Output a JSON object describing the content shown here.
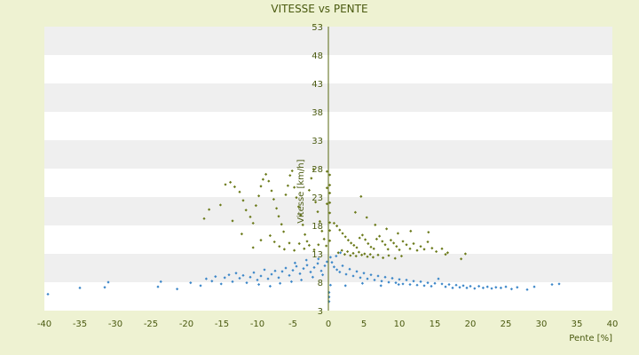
{
  "chart_data": {
    "type": "scatter",
    "title": "VITESSE vs PENTE",
    "xlabel": "Pente [%]",
    "ylabel": "Vitesse [km/h]",
    "xlim": [
      -40,
      40
    ],
    "ylim": [
      3,
      53
    ],
    "x_ticks": [
      -40,
      -35,
      -30,
      -25,
      -20,
      -15,
      -10,
      -5,
      0,
      5,
      10,
      15,
      20,
      25,
      30,
      35,
      40
    ],
    "y_ticks": [
      3,
      8,
      13,
      18,
      23,
      28,
      33,
      38,
      43,
      48,
      53
    ],
    "grid": "alternating horizontal bands",
    "colors": {
      "background": "#eef2d2",
      "band_light": "#ffffff",
      "band_dark": "#efefef",
      "axis": "#5a6a10",
      "text": "#4a5a10",
      "series_high": "#6b7a1a",
      "series_low": "#3b86c8"
    },
    "series": [
      {
        "color": "#6b7a1a",
        "marker": "diamond",
        "points": [
          [
            -14.5,
            25.2
          ],
          [
            -13.8,
            25.6
          ],
          [
            -13.2,
            24.8
          ],
          [
            -12.5,
            23.9
          ],
          [
            -12.0,
            22.4
          ],
          [
            -11.6,
            20.7
          ],
          [
            -11.0,
            19.5
          ],
          [
            -10.6,
            18.4
          ],
          [
            -10.2,
            21.5
          ],
          [
            -9.8,
            23.2
          ],
          [
            -9.5,
            24.9
          ],
          [
            -9.2,
            26.1
          ],
          [
            -8.8,
            27.0
          ],
          [
            -8.4,
            25.8
          ],
          [
            -8.0,
            24.1
          ],
          [
            -7.7,
            22.6
          ],
          [
            -7.3,
            21.0
          ],
          [
            -7.0,
            19.6
          ],
          [
            -6.6,
            18.2
          ],
          [
            -6.3,
            16.9
          ],
          [
            -6.0,
            23.4
          ],
          [
            -5.7,
            25.0
          ],
          [
            -5.4,
            26.8
          ],
          [
            -5.1,
            27.6
          ],
          [
            -4.8,
            24.7
          ],
          [
            -4.5,
            22.9
          ],
          [
            -4.2,
            21.3
          ],
          [
            -3.9,
            19.8
          ],
          [
            -3.6,
            18.1
          ],
          [
            -3.3,
            16.4
          ],
          [
            -3.0,
            15.2
          ],
          [
            -2.7,
            24.2
          ],
          [
            -2.4,
            26.3
          ],
          [
            -2.1,
            27.9
          ],
          [
            -1.8,
            22.1
          ],
          [
            -1.5,
            20.4
          ],
          [
            -1.2,
            18.7
          ],
          [
            -0.9,
            17.0
          ],
          [
            -0.6,
            15.6
          ],
          [
            -0.3,
            14.4
          ],
          [
            -8.2,
            16.2
          ],
          [
            -7.6,
            15.1
          ],
          [
            -6.9,
            14.3
          ],
          [
            -6.2,
            13.8
          ],
          [
            -5.5,
            14.9
          ],
          [
            -4.8,
            13.6
          ],
          [
            -4.1,
            14.8
          ],
          [
            -3.4,
            13.9
          ],
          [
            -2.7,
            14.5
          ],
          [
            -2.0,
            13.7
          ],
          [
            -1.4,
            14.6
          ],
          [
            -9.5,
            15.4
          ],
          [
            -10.6,
            14.1
          ],
          [
            -12.2,
            16.5
          ],
          [
            -13.5,
            18.8
          ],
          [
            -15.2,
            21.6
          ],
          [
            -16.8,
            20.8
          ],
          [
            -17.5,
            19.2
          ],
          [
            0.8,
            18.4
          ],
          [
            1.2,
            17.9
          ],
          [
            1.6,
            17.2
          ],
          [
            2.0,
            16.6
          ],
          [
            2.4,
            16.0
          ],
          [
            2.8,
            15.4
          ],
          [
            3.2,
            14.9
          ],
          [
            3.6,
            14.5
          ],
          [
            4.0,
            14.1
          ],
          [
            4.4,
            15.8
          ],
          [
            4.8,
            16.3
          ],
          [
            5.2,
            15.5
          ],
          [
            5.6,
            14.8
          ],
          [
            6.0,
            14.2
          ],
          [
            6.4,
            13.9
          ],
          [
            6.8,
            15.6
          ],
          [
            7.2,
            16.1
          ],
          [
            7.6,
            15.2
          ],
          [
            8.0,
            14.6
          ],
          [
            8.4,
            13.8
          ],
          [
            8.8,
            15.4
          ],
          [
            9.2,
            14.9
          ],
          [
            9.6,
            14.3
          ],
          [
            10.0,
            13.7
          ],
          [
            10.5,
            15.2
          ],
          [
            11.0,
            14.6
          ],
          [
            11.5,
            13.9
          ],
          [
            12.0,
            14.8
          ],
          [
            12.5,
            13.6
          ],
          [
            13.0,
            14.3
          ],
          [
            13.5,
            13.8
          ],
          [
            14.0,
            15.1
          ],
          [
            14.6,
            14.0
          ],
          [
            15.2,
            13.4
          ],
          [
            16.0,
            13.9
          ],
          [
            16.8,
            13.2
          ],
          [
            1.4,
            13.2
          ],
          [
            1.9,
            13.6
          ],
          [
            2.3,
            12.9
          ],
          [
            2.7,
            13.4
          ],
          [
            3.1,
            12.7
          ],
          [
            3.5,
            13.1
          ],
          [
            3.9,
            12.6
          ],
          [
            4.3,
            13.3
          ],
          [
            4.7,
            12.8
          ],
          [
            5.1,
            13.0
          ],
          [
            5.5,
            12.5
          ],
          [
            5.9,
            12.9
          ],
          [
            6.3,
            12.4
          ],
          [
            7.0,
            12.8
          ],
          [
            7.7,
            12.3
          ],
          [
            8.5,
            12.7
          ],
          [
            9.4,
            12.2
          ],
          [
            10.3,
            12.6
          ],
          [
            3.8,
            20.3
          ],
          [
            4.6,
            23.1
          ],
          [
            5.4,
            19.4
          ],
          [
            6.6,
            18.1
          ],
          [
            8.2,
            17.4
          ],
          [
            9.8,
            16.6
          ],
          [
            11.6,
            17.0
          ],
          [
            14.1,
            16.8
          ],
          [
            16.5,
            12.9
          ],
          [
            18.7,
            12.1
          ],
          [
            19.3,
            13.0
          ],
          [
            0.2,
            26.9
          ],
          [
            0.2,
            25.1
          ],
          [
            0.2,
            23.7
          ],
          [
            0.2,
            22.0
          ],
          [
            0.2,
            20.2
          ],
          [
            0.2,
            18.5
          ],
          [
            0.2,
            17.1
          ],
          [
            0.2,
            15.3
          ],
          [
            -0.2,
            27.5
          ],
          [
            -0.2,
            24.6
          ],
          [
            -0.2,
            21.8
          ]
        ]
      },
      {
        "color": "#3b86c8",
        "marker": "diamond",
        "points": [
          [
            -39.5,
            5.9
          ],
          [
            -35.0,
            7.0
          ],
          [
            -31.5,
            7.1
          ],
          [
            -31.0,
            8.0
          ],
          [
            -24.0,
            7.2
          ],
          [
            -23.6,
            8.1
          ],
          [
            -21.3,
            6.8
          ],
          [
            -19.4,
            7.9
          ],
          [
            -18.0,
            7.4
          ],
          [
            -17.2,
            8.6
          ],
          [
            -16.4,
            8.2
          ],
          [
            -15.9,
            9.0
          ],
          [
            -15.1,
            7.7
          ],
          [
            -14.6,
            8.8
          ],
          [
            -14.0,
            9.3
          ],
          [
            -13.5,
            8.1
          ],
          [
            -13.0,
            9.6
          ],
          [
            -12.5,
            8.7
          ],
          [
            -12.0,
            9.2
          ],
          [
            -11.5,
            7.9
          ],
          [
            -11.0,
            8.9
          ],
          [
            -10.5,
            9.7
          ],
          [
            -10.0,
            8.4
          ],
          [
            -9.5,
            9.1
          ],
          [
            -9.0,
            10.2
          ],
          [
            -8.5,
            8.6
          ],
          [
            -8.0,
            9.4
          ],
          [
            -7.5,
            10.0
          ],
          [
            -7.0,
            8.8
          ],
          [
            -6.5,
            9.9
          ],
          [
            -6.0,
            10.5
          ],
          [
            -5.5,
            9.2
          ],
          [
            -5.0,
            10.1
          ],
          [
            -4.5,
            10.8
          ],
          [
            -4.0,
            9.5
          ],
          [
            -3.5,
            10.4
          ],
          [
            -3.0,
            11.0
          ],
          [
            -2.5,
            9.8
          ],
          [
            -2.0,
            10.6
          ],
          [
            -1.5,
            11.3
          ],
          [
            -1.0,
            10.0
          ],
          [
            -0.5,
            10.9
          ],
          [
            -0.2,
            11.6
          ],
          [
            -9.8,
            7.6
          ],
          [
            -8.2,
            7.3
          ],
          [
            -6.8,
            7.8
          ],
          [
            -5.2,
            8.1
          ],
          [
            -3.8,
            8.4
          ],
          [
            -2.2,
            8.9
          ],
          [
            -0.8,
            9.3
          ],
          [
            -1.4,
            12.1
          ],
          [
            -3.1,
            11.9
          ],
          [
            -4.7,
            11.4
          ],
          [
            0.3,
            12.4
          ],
          [
            0.5,
            11.5
          ],
          [
            0.8,
            10.7
          ],
          [
            1.2,
            10.2
          ],
          [
            1.6,
            9.8
          ],
          [
            2.0,
            10.9
          ],
          [
            2.5,
            9.4
          ],
          [
            3.0,
            10.3
          ],
          [
            3.5,
            9.1
          ],
          [
            4.0,
            9.9
          ],
          [
            4.5,
            8.8
          ],
          [
            5.0,
            9.6
          ],
          [
            5.5,
            8.6
          ],
          [
            6.0,
            9.3
          ],
          [
            6.5,
            8.4
          ],
          [
            7.0,
            9.1
          ],
          [
            7.5,
            8.2
          ],
          [
            8.0,
            8.9
          ],
          [
            8.5,
            8.0
          ],
          [
            9.0,
            8.7
          ],
          [
            9.5,
            7.9
          ],
          [
            10.0,
            8.5
          ],
          [
            10.5,
            7.7
          ],
          [
            11.0,
            8.4
          ],
          [
            11.5,
            7.6
          ],
          [
            12.0,
            8.2
          ],
          [
            12.5,
            7.5
          ],
          [
            13.0,
            8.1
          ],
          [
            13.5,
            7.4
          ],
          [
            14.0,
            7.9
          ],
          [
            14.5,
            7.3
          ],
          [
            15.0,
            7.8
          ],
          [
            15.5,
            8.6
          ],
          [
            16.0,
            7.7
          ],
          [
            16.5,
            7.2
          ],
          [
            17.0,
            7.6
          ],
          [
            17.5,
            7.0
          ],
          [
            18.0,
            7.5
          ],
          [
            18.5,
            7.1
          ],
          [
            19.0,
            7.4
          ],
          [
            19.5,
            7.0
          ],
          [
            20.0,
            7.3
          ],
          [
            20.6,
            6.9
          ],
          [
            21.2,
            7.3
          ],
          [
            21.8,
            7.0
          ],
          [
            22.4,
            7.2
          ],
          [
            23.0,
            6.9
          ],
          [
            23.6,
            7.1
          ],
          [
            24.3,
            7.0
          ],
          [
            25.0,
            7.2
          ],
          [
            25.8,
            6.8
          ],
          [
            26.6,
            7.1
          ],
          [
            28.0,
            6.7
          ],
          [
            29.0,
            7.2
          ],
          [
            31.5,
            7.6
          ],
          [
            32.5,
            7.7
          ],
          [
            0.1,
            6.2
          ],
          [
            0.1,
            5.4
          ],
          [
            0.1,
            4.6
          ],
          [
            0.3,
            7.5
          ],
          [
            2.4,
            7.4
          ],
          [
            4.8,
            7.8
          ],
          [
            7.4,
            7.4
          ],
          [
            9.9,
            7.6
          ],
          [
            1.1,
            12.6
          ],
          [
            1.7,
            13.2
          ]
        ]
      }
    ]
  }
}
